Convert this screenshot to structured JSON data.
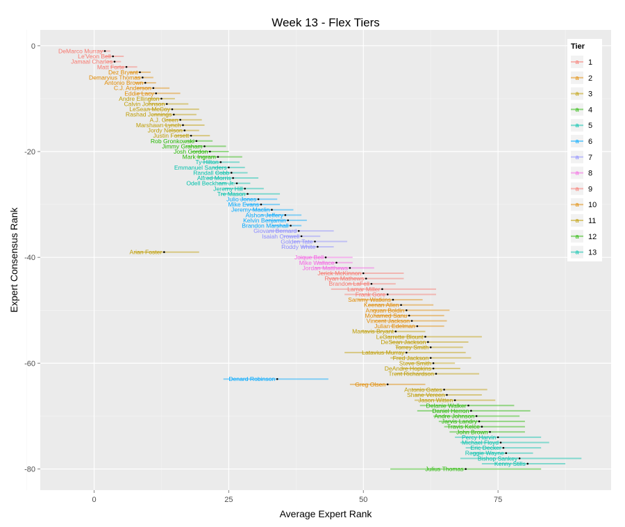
{
  "chart_data": {
    "type": "scatter",
    "title": "Week 13 - Flex Tiers",
    "xlabel": "Average Expert Rank",
    "ylabel": "Expert Consensus Rank",
    "xlim": [
      -10,
      96
    ],
    "ylim": [
      -84,
      3
    ],
    "x_ticks": [
      0,
      25,
      50,
      75
    ],
    "y_ticks": [
      0,
      -20,
      -40,
      -60,
      -80
    ],
    "grid": true,
    "legend": {
      "title": "Tier",
      "placement": "right-inside-top",
      "key_glyph": "a"
    },
    "tier_colors": {
      "1": "#F8766D",
      "2": "#E18A00",
      "3": "#BE9C00",
      "4": "#24B700",
      "5": "#00C1AB",
      "6": "#00A9FF",
      "7": "#8C8CFF",
      "8": "#F564E3",
      "9": "#F8766D",
      "10": "#E18A00",
      "11": "#BE9C00",
      "12": "#24B700",
      "13": "#00C1AB"
    },
    "players": [
      {
        "name": "DeMarco Murray",
        "rank": -1,
        "avg": 2.0,
        "min": 1,
        "max": 3,
        "tier": 1
      },
      {
        "name": "Le'Veon Bell",
        "rank": -2,
        "avg": 3.5,
        "min": 2,
        "max": 5.5,
        "tier": 1
      },
      {
        "name": "Jamaal Charles",
        "rank": -3,
        "avg": 3.8,
        "min": 2.5,
        "max": 5,
        "tier": 1
      },
      {
        "name": "Matt Forte",
        "rank": -4,
        "avg": 6.0,
        "min": 3,
        "max": 8,
        "tier": 1
      },
      {
        "name": "Dez Bryant",
        "rank": -5,
        "avg": 8.5,
        "min": 6.5,
        "max": 10.5,
        "tier": 2
      },
      {
        "name": "Demaryius Thomas",
        "rank": -6,
        "avg": 9.0,
        "min": 7.5,
        "max": 11,
        "tier": 2
      },
      {
        "name": "Antonio Brown",
        "rank": -7,
        "avg": 9.5,
        "min": 7.5,
        "max": 11.5,
        "tier": 2
      },
      {
        "name": "C.J. Anderson",
        "rank": -8,
        "avg": 11.0,
        "min": 8,
        "max": 14,
        "tier": 2
      },
      {
        "name": "Eddie Lacy",
        "rank": -9,
        "avg": 11.5,
        "min": 8,
        "max": 16,
        "tier": 2
      },
      {
        "name": "Andre Ellington",
        "rank": -10,
        "avg": 12.5,
        "min": 10,
        "max": 15,
        "tier": 3
      },
      {
        "name": "Calvin Johnson",
        "rank": -11,
        "avg": 13.5,
        "min": 10,
        "max": 17.5,
        "tier": 3
      },
      {
        "name": "LeSean McCoy",
        "rank": -12,
        "avg": 14.5,
        "min": 10,
        "max": 19.5,
        "tier": 3
      },
      {
        "name": "Rashad Jennings",
        "rank": -13,
        "avg": 14.8,
        "min": 11,
        "max": 19,
        "tier": 3
      },
      {
        "name": "A.J. Green",
        "rank": -14,
        "avg": 16.0,
        "min": 13,
        "max": 20,
        "tier": 3
      },
      {
        "name": "Marshawn Lynch",
        "rank": -15,
        "avg": 16.5,
        "min": 13,
        "max": 20.5,
        "tier": 3
      },
      {
        "name": "Jordy Nelson",
        "rank": -16,
        "avg": 16.8,
        "min": 14,
        "max": 19.5,
        "tier": 3
      },
      {
        "name": "Justin Forsett",
        "rank": -17,
        "avg": 18.0,
        "min": 15,
        "max": 21.5,
        "tier": 3
      },
      {
        "name": "Rob Gronkowski",
        "rank": -18,
        "avg": 19.0,
        "min": 17,
        "max": 22,
        "tier": 4
      },
      {
        "name": "Jimmy Graham",
        "rank": -19,
        "avg": 20.5,
        "min": 17,
        "max": 24.5,
        "tier": 4
      },
      {
        "name": "Josh Gordon",
        "rank": -20,
        "avg": 21.5,
        "min": 18,
        "max": 25,
        "tier": 4
      },
      {
        "name": "Mark Ingram",
        "rank": -21,
        "avg": 23.0,
        "min": 19,
        "max": 27.5,
        "tier": 4
      },
      {
        "name": "Ty Hilton",
        "rank": -22,
        "avg": 23.5,
        "min": 20,
        "max": 27,
        "tier": 5
      },
      {
        "name": "Emmanuel Sanders",
        "rank": -23,
        "avg": 25.0,
        "min": 22,
        "max": 28,
        "tier": 5
      },
      {
        "name": "Randall Cobb",
        "rank": -24,
        "avg": 25.5,
        "min": 22.5,
        "max": 28.5,
        "tier": 5
      },
      {
        "name": "Alfred Morris",
        "rank": -25,
        "avg": 25.8,
        "min": 21,
        "max": 30.5,
        "tier": 5
      },
      {
        "name": "Odell Beckham Jr.",
        "rank": -26,
        "avg": 26.5,
        "min": 23,
        "max": 29,
        "tier": 5
      },
      {
        "name": "Jeremy Hill",
        "rank": -27,
        "avg": 28.0,
        "min": 24,
        "max": 31.5,
        "tier": 5
      },
      {
        "name": "Tre Mason",
        "rank": -28,
        "avg": 28.5,
        "min": 23.5,
        "max": 34.5,
        "tier": 5
      },
      {
        "name": "Julio Jones",
        "rank": -29,
        "avg": 30.5,
        "min": 27,
        "max": 34,
        "tier": 6
      },
      {
        "name": "Mike Evans",
        "rank": -30,
        "avg": 31.0,
        "min": 28,
        "max": 34.5,
        "tier": 6
      },
      {
        "name": "Jeremy Maclin",
        "rank": -31,
        "avg": 33.0,
        "min": 29,
        "max": 37,
        "tier": 6
      },
      {
        "name": "Alshon Jeffery",
        "rank": -32,
        "avg": 35.5,
        "min": 31,
        "max": 38.5,
        "tier": 6
      },
      {
        "name": "Kelvin Benjamin",
        "rank": -33,
        "avg": 36.0,
        "min": 32,
        "max": 39.5,
        "tier": 6
      },
      {
        "name": "Brandon Marshall",
        "rank": -34,
        "avg": 36.5,
        "min": 33,
        "max": 38.5,
        "tier": 6
      },
      {
        "name": "Giovani Bernard",
        "rank": -35,
        "avg": 38.0,
        "min": 32.5,
        "max": 44.5,
        "tier": 7
      },
      {
        "name": "Isaiah Crowell",
        "rank": -36,
        "avg": 38.5,
        "min": 35,
        "max": 42,
        "tier": 7
      },
      {
        "name": "Golden Tate",
        "rank": -37,
        "avg": 41.0,
        "min": 37,
        "max": 47,
        "tier": 7
      },
      {
        "name": "Roddy White",
        "rank": -38,
        "avg": 41.5,
        "min": 38.5,
        "max": 44.5,
        "tier": 7
      },
      {
        "name": "Arian Foster",
        "rank": -39,
        "avg": 13.0,
        "min": 7.5,
        "max": 19.5,
        "tier": 3
      },
      {
        "name": "Joique Bell",
        "rank": -40,
        "avg": 43.0,
        "min": 38,
        "max": 48,
        "tier": 8
      },
      {
        "name": "Mike Wallace",
        "rank": -41,
        "avg": 45.0,
        "min": 41.5,
        "max": 48,
        "tier": 8
      },
      {
        "name": "Jordan Matthews",
        "rank": -42,
        "avg": 47.5,
        "min": 41,
        "max": 52,
        "tier": 8
      },
      {
        "name": "Jerick McKinnon",
        "rank": -43,
        "avg": 50.0,
        "min": 42,
        "max": 57.5,
        "tier": 9
      },
      {
        "name": "Ryan Mathews",
        "rank": -44,
        "avg": 50.5,
        "min": 43.5,
        "max": 57.5,
        "tier": 9
      },
      {
        "name": "Brandon LaFell",
        "rank": -45,
        "avg": 51.5,
        "min": 47,
        "max": 56,
        "tier": 9
      },
      {
        "name": "Lamar Miller",
        "rank": -46,
        "avg": 53.5,
        "min": 44,
        "max": 63.5,
        "tier": 9
      },
      {
        "name": "Frank Gore",
        "rank": -47,
        "avg": 54.5,
        "min": 46.5,
        "max": 63.5,
        "tier": 9
      },
      {
        "name": "Sammy Watkins",
        "rank": -48,
        "avg": 55.5,
        "min": 49,
        "max": 61,
        "tier": 10
      },
      {
        "name": "Keenan Allen",
        "rank": -49,
        "avg": 57.0,
        "min": 51,
        "max": 63,
        "tier": 10
      },
      {
        "name": "Anquan Boldin",
        "rank": -50,
        "avg": 58.0,
        "min": 51.5,
        "max": 66,
        "tier": 10
      },
      {
        "name": "Mohamed Sanu",
        "rank": -51,
        "avg": 58.5,
        "min": 52,
        "max": 65,
        "tier": 10
      },
      {
        "name": "Vincent Jackson",
        "rank": -52,
        "avg": 59.0,
        "min": 52,
        "max": 65.5,
        "tier": 10
      },
      {
        "name": "Julian Edelman",
        "rank": -53,
        "avg": 60.0,
        "min": 55,
        "max": 65,
        "tier": 10
      },
      {
        "name": "Martavis Bryant",
        "rank": -54,
        "avg": 56.0,
        "min": 49.5,
        "max": 61.5,
        "tier": 11
      },
      {
        "name": "LeGarrette Blount",
        "rank": -55,
        "avg": 61.5,
        "min": 54,
        "max": 72,
        "tier": 11
      },
      {
        "name": "DeSean Jackson",
        "rank": -56,
        "avg": 62.0,
        "min": 55,
        "max": 69.5,
        "tier": 11
      },
      {
        "name": "Torrey Smith",
        "rank": -57,
        "avg": 62.5,
        "min": 56,
        "max": 68.5,
        "tier": 11
      },
      {
        "name": "Latavius Murray",
        "rank": -58,
        "avg": 58.0,
        "min": 46.5,
        "max": 69,
        "tier": 11
      },
      {
        "name": "Fred Jackson",
        "rank": -59,
        "avg": 62.5,
        "min": 55,
        "max": 70,
        "tier": 11
      },
      {
        "name": "Steve Smith",
        "rank": -60,
        "avg": 63.0,
        "min": 58,
        "max": 67,
        "tier": 11
      },
      {
        "name": "DeAndre Hopkins",
        "rank": -61,
        "avg": 63.0,
        "min": 57,
        "max": 68,
        "tier": 11
      },
      {
        "name": "Trent Richardson",
        "rank": -62,
        "avg": 63.5,
        "min": 56,
        "max": 71.5,
        "tier": 11
      },
      {
        "name": "Denard Robinson",
        "rank": -63,
        "avg": 34.0,
        "min": 24,
        "max": 43.5,
        "tier": 6
      },
      {
        "name": "Greg Olsen",
        "rank": -64,
        "avg": 54.5,
        "min": 47.5,
        "max": 61.5,
        "tier": 10
      },
      {
        "name": "Antonio Gates",
        "rank": -65,
        "avg": 65.0,
        "min": 59,
        "max": 73,
        "tier": 11
      },
      {
        "name": "Shane Vereen",
        "rank": -66,
        "avg": 65.5,
        "min": 59.5,
        "max": 72,
        "tier": 11
      },
      {
        "name": "Jason Witten",
        "rank": -67,
        "avg": 67.0,
        "min": 59.5,
        "max": 74.5,
        "tier": 11
      },
      {
        "name": "Delanie Walker",
        "rank": -68,
        "avg": 69.5,
        "min": 60.5,
        "max": 78,
        "tier": 12
      },
      {
        "name": "Daniel Herron",
        "rank": -69,
        "avg": 70.0,
        "min": 60,
        "max": 81,
        "tier": 12
      },
      {
        "name": "Andre Johnson",
        "rank": -70,
        "avg": 71.0,
        "min": 63,
        "max": 79,
        "tier": 12
      },
      {
        "name": "Jarvis Landry",
        "rank": -71,
        "avg": 71.5,
        "min": 64,
        "max": 80,
        "tier": 12
      },
      {
        "name": "Travis Kelce",
        "rank": -72,
        "avg": 72.0,
        "min": 65,
        "max": 80,
        "tier": 12
      },
      {
        "name": "John Brown",
        "rank": -73,
        "avg": 73.5,
        "min": 66,
        "max": 80,
        "tier": 12
      },
      {
        "name": "Percy Harvin",
        "rank": -74,
        "avg": 75.0,
        "min": 67,
        "max": 83,
        "tier": 13
      },
      {
        "name": "Michael Floyd",
        "rank": -75,
        "avg": 75.5,
        "min": 68,
        "max": 84.5,
        "tier": 13
      },
      {
        "name": "Eric Decker",
        "rank": -76,
        "avg": 76.0,
        "min": 69,
        "max": 83,
        "tier": 13
      },
      {
        "name": "Reggie Wayne",
        "rank": -77,
        "avg": 76.5,
        "min": 70,
        "max": 81.5,
        "tier": 13
      },
      {
        "name": "Bishop Sankey",
        "rank": -78,
        "avg": 79.0,
        "min": 68,
        "max": 90.5,
        "tier": 13
      },
      {
        "name": "Kenny Stills",
        "rank": -79,
        "avg": 80.5,
        "min": 72,
        "max": 87.5,
        "tier": 13
      },
      {
        "name": "Julius Thomas",
        "rank": -80,
        "avg": 69.0,
        "min": 55,
        "max": 83,
        "tier": 12
      }
    ]
  }
}
